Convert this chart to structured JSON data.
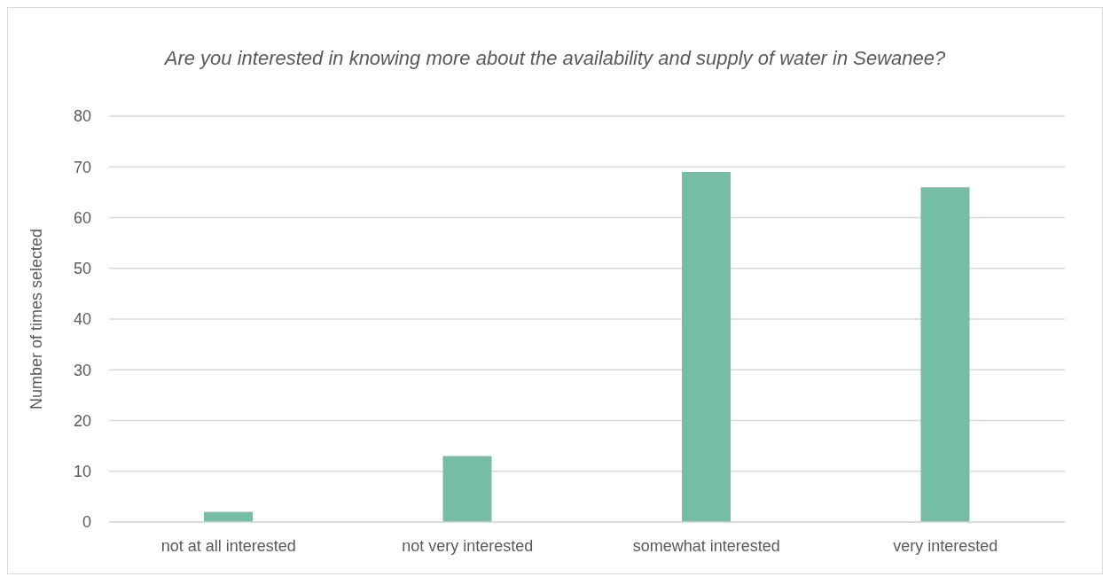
{
  "chart_data": {
    "type": "bar",
    "title": "Are you interested in knowing more about the availability and supply of water in Sewanee?",
    "ylabel": "Number of times selected",
    "categories": [
      "not at all interested",
      "not very interested",
      "somewhat interested",
      "very interested"
    ],
    "values": [
      2,
      13,
      69,
      66
    ],
    "color": "#76bda6",
    "ylim": [
      0,
      80
    ],
    "yticks": [
      0,
      10,
      20,
      30,
      40,
      50,
      60,
      70,
      80
    ],
    "grid": "y"
  }
}
